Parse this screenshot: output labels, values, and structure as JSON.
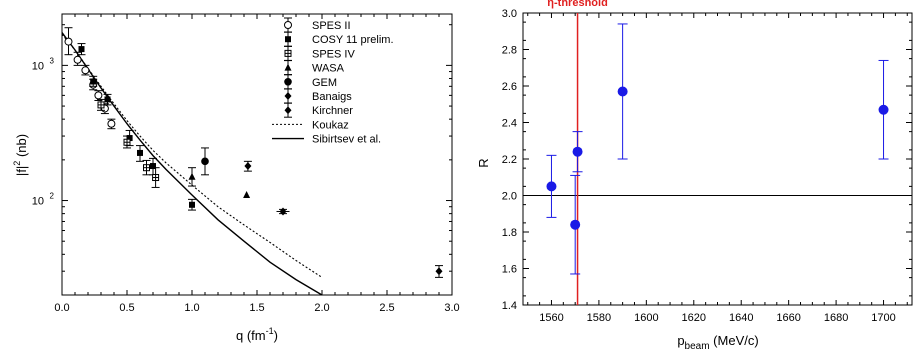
{
  "chart_data": [
    {
      "type": "scatter",
      "title": "",
      "xlabel": "q (fm",
      "xlabel_sup": "-1",
      "xlabel_end": ")",
      "ylabel": "|f|",
      "ylabel_sup": "2",
      "ylabel_end": " (nb)",
      "xlim": [
        0,
        3.0
      ],
      "ylim": [
        20,
        2400
      ],
      "y_scale": "log",
      "x_ticks": [
        "0.0",
        "0.5",
        "1.0",
        "1.5",
        "2.0",
        "2.5",
        "3.0"
      ],
      "y_ticks": [
        {
          "base": "10",
          "exp": "3",
          "value": 1000
        },
        {
          "base": "10",
          "exp": "2",
          "value": 100
        }
      ],
      "legend": {
        "placement": "top-right",
        "entries": [
          {
            "label": "SPES II",
            "marker": "open-circle"
          },
          {
            "label": "COSY 11 prelim.",
            "marker": "square"
          },
          {
            "label": "SPES IV",
            "marker": "crossed-square"
          },
          {
            "label": "WASA",
            "marker": "triangle"
          },
          {
            "label": "GEM",
            "marker": "big-circle"
          },
          {
            "label": "Banaigs",
            "marker": "diamond"
          },
          {
            "label": "Kirchner",
            "marker": "diamond"
          },
          {
            "label": "Koukaz",
            "marker": "dotted-line"
          },
          {
            "label": "Sibirtsev et al.",
            "marker": "solid-line"
          }
        ]
      },
      "series": [
        {
          "name": "SPES II",
          "marker": "open-circle",
          "points": [
            {
              "x": 0.05,
              "y": 1500,
              "lo": 1200,
              "hi": 1900
            },
            {
              "x": 0.12,
              "y": 1100,
              "lo": 1000,
              "hi": 1250
            },
            {
              "x": 0.18,
              "y": 920,
              "lo": 850,
              "hi": 1000
            },
            {
              "x": 0.24,
              "y": 720,
              "lo": 660,
              "hi": 790
            },
            {
              "x": 0.28,
              "y": 600,
              "lo": 550,
              "hi": 650
            },
            {
              "x": 0.33,
              "y": 480,
              "lo": 440,
              "hi": 520
            },
            {
              "x": 0.38,
              "y": 370,
              "lo": 340,
              "hi": 400
            }
          ]
        },
        {
          "name": "COSY 11 prelim.",
          "marker": "square",
          "points": [
            {
              "x": 0.15,
              "y": 1320,
              "lo": 1200,
              "hi": 1450
            },
            {
              "x": 0.24,
              "y": 760,
              "lo": 700,
              "hi": 830
            },
            {
              "x": 0.35,
              "y": 560,
              "lo": 510,
              "hi": 610
            },
            {
              "x": 0.52,
              "y": 290,
              "lo": 255,
              "hi": 330
            },
            {
              "x": 0.6,
              "y": 225,
              "lo": 195,
              "hi": 255
            },
            {
              "x": 0.7,
              "y": 180,
              "lo": 155,
              "hi": 205
            },
            {
              "x": 1.0,
              "y": 93,
              "lo": 85,
              "hi": 102
            }
          ]
        },
        {
          "name": "SPES IV",
          "marker": "crossed-square",
          "points": [
            {
              "x": 0.3,
              "y": 510,
              "lo": 465,
              "hi": 560
            },
            {
              "x": 0.5,
              "y": 270,
              "lo": 245,
              "hi": 300
            },
            {
              "x": 0.65,
              "y": 175,
              "lo": 155,
              "hi": 198
            },
            {
              "x": 0.72,
              "y": 148,
              "lo": 125,
              "hi": 175
            }
          ]
        },
        {
          "name": "WASA",
          "marker": "triangle",
          "points": [
            {
              "x": 1.0,
              "y": 150,
              "lo": 128,
              "hi": 175
            },
            {
              "x": 1.42,
              "y": 110,
              "lo": 110,
              "hi": 110
            }
          ]
        },
        {
          "name": "GEM",
          "marker": "big-circle",
          "points": [
            {
              "x": 1.1,
              "y": 195,
              "lo": 155,
              "hi": 245
            }
          ]
        },
        {
          "name": "Banaigs",
          "marker": "diamond",
          "points": [
            {
              "x": 1.43,
              "y": 180,
              "lo": 165,
              "hi": 195
            },
            {
              "x": 1.7,
              "y": 83,
              "lo": 80,
              "hi": 86,
              "xerr": 0.05
            }
          ]
        },
        {
          "name": "Kirchner",
          "marker": "diamond",
          "points": [
            {
              "x": 2.9,
              "y": 30,
              "lo": 27,
              "hi": 33
            }
          ]
        }
      ],
      "curves": [
        {
          "name": "Koukaz",
          "style": "dotted",
          "x": [
            0.0,
            0.1,
            0.2,
            0.3,
            0.4,
            0.5,
            0.6,
            0.7,
            0.8,
            1.0,
            1.2,
            1.4,
            1.6,
            1.8,
            2.0
          ],
          "y": [
            1700,
            1300,
            950,
            700,
            520,
            390,
            300,
            235,
            190,
            130,
            90,
            66,
            49,
            36,
            27
          ]
        },
        {
          "name": "Sibirtsev et al.",
          "style": "solid",
          "x": [
            0.0,
            0.1,
            0.2,
            0.3,
            0.4,
            0.5,
            0.6,
            0.7,
            0.8,
            1.0,
            1.2,
            1.4,
            1.6,
            1.8,
            2.0
          ],
          "y": [
            1750,
            1300,
            940,
            680,
            500,
            370,
            280,
            215,
            170,
            110,
            72,
            50,
            35,
            26,
            20
          ]
        }
      ]
    },
    {
      "type": "scatter",
      "title": "",
      "xlabel": "p",
      "xlabel_sub": "beam",
      "xlabel_end": " (MeV/c)",
      "ylabel": "R",
      "xlim": [
        1548,
        1712
      ],
      "ylim": [
        1.4,
        3.0
      ],
      "x_ticks": [
        1560,
        1580,
        1600,
        1620,
        1640,
        1660,
        1680,
        1700
      ],
      "y_ticks": [
        "1.4",
        "1.6",
        "1.8",
        "2.0",
        "2.2",
        "2.4",
        "2.6",
        "2.8",
        "3.0"
      ],
      "reference_line": {
        "y": 2.0,
        "color": "#000000"
      },
      "threshold": {
        "x": 1571,
        "label": "η-threshold",
        "color": "#e02020"
      },
      "point_color": "#1a1ae6",
      "points": [
        {
          "x": 1560,
          "y": 2.05,
          "lo": 1.88,
          "hi": 2.22
        },
        {
          "x": 1570,
          "y": 1.84,
          "lo": 1.57,
          "hi": 2.11
        },
        {
          "x": 1571,
          "y": 2.24,
          "lo": 2.13,
          "hi": 2.35
        },
        {
          "x": 1590,
          "y": 2.57,
          "lo": 2.2,
          "hi": 2.94
        },
        {
          "x": 1700,
          "y": 2.47,
          "lo": 2.2,
          "hi": 2.74
        }
      ]
    }
  ]
}
